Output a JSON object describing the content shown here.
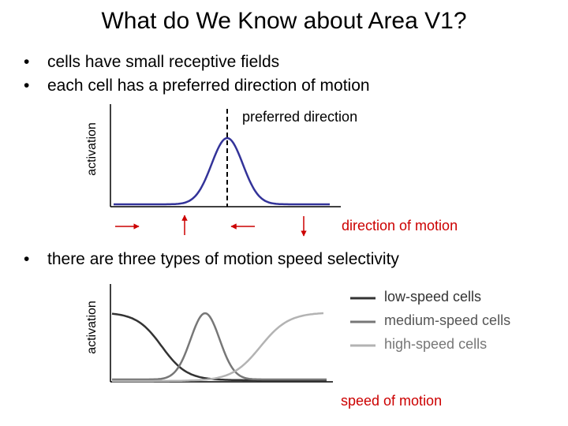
{
  "title": "What do We Know about Area V1?",
  "bullets": [
    "cells have small receptive fields",
    "each cell has a preferred direction of motion"
  ],
  "bullet3": "there are three types of motion speed selectivity",
  "diagram1": {
    "ylabel": "activation",
    "xlabel": "direction of motion",
    "annotation": "preferred direction",
    "curve_color": "#333399",
    "arrow_color": "#cc0000",
    "arrows": [
      "right",
      "up",
      "left",
      "down"
    ]
  },
  "diagram2": {
    "ylabel": "activation",
    "xlabel": "speed of motion",
    "legend": [
      {
        "label": "low-speed cells",
        "color": "#333333"
      },
      {
        "label": "medium-speed cells",
        "color": "#777777"
      },
      {
        "label": "high-speed cells",
        "color": "#b3b3b3"
      }
    ]
  }
}
